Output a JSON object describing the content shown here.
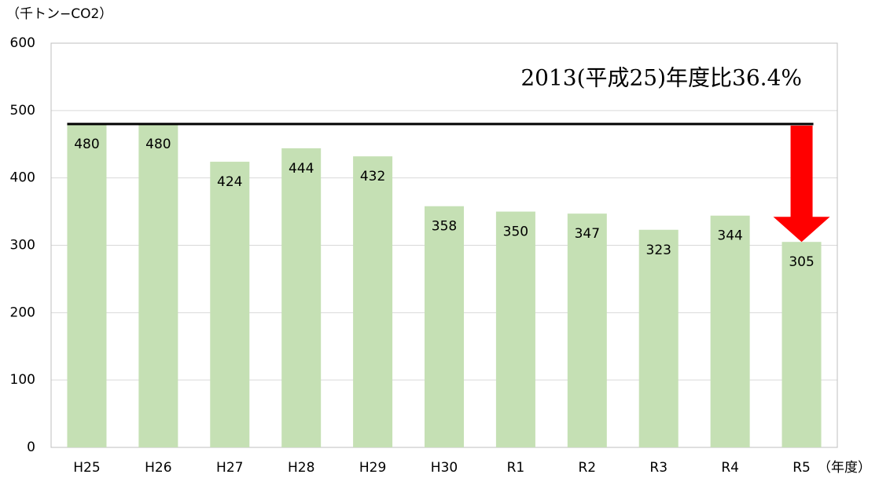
{
  "chart_data": {
    "type": "bar",
    "y_label": "（千トン−CO2）",
    "x_label": "（年度）",
    "annotation": "2013(平成25)年度比36.4%",
    "categories": [
      "H25",
      "H26",
      "H27",
      "H28",
      "H29",
      "H30",
      "R1",
      "R2",
      "R3",
      "R4",
      "R5"
    ],
    "values": [
      480,
      480,
      424,
      444,
      432,
      358,
      350,
      347,
      323,
      344,
      305
    ],
    "color": "#c5e0b4",
    "ylim": [
      0,
      600
    ],
    "yticks": [
      0,
      100,
      200,
      300,
      400,
      500,
      600
    ],
    "grid": true
  }
}
